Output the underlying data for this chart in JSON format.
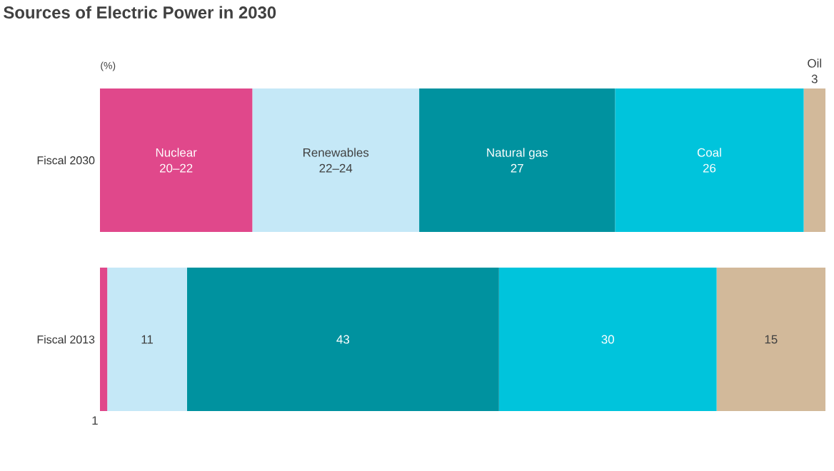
{
  "chart_data": {
    "type": "bar",
    "orientation": "horizontal",
    "stacked": true,
    "title": "Sources of Electric Power in 2030",
    "annotations": [
      "(%)"
    ],
    "categories": [
      "Fiscal 2030",
      "Fiscal 2013"
    ],
    "xlim": [
      0,
      100
    ],
    "tick_labels": "y",
    "series": [
      {
        "name": "Nuclear",
        "color": "#e0488b",
        "values": [
          21,
          1
        ],
        "value_labels": [
          "20–22",
          "1"
        ]
      },
      {
        "name": "Renewables",
        "color": "#c5e8f7",
        "values": [
          23,
          11
        ],
        "value_labels": [
          "22–24",
          "11"
        ]
      },
      {
        "name": "Natural gas",
        "color": "#00929f",
        "values": [
          27,
          43
        ],
        "value_labels": [
          "27",
          "43"
        ]
      },
      {
        "name": "Coal",
        "color": "#00c4dc",
        "values": [
          26,
          30
        ],
        "value_labels": [
          "26",
          "30"
        ]
      },
      {
        "name": "Oil",
        "color": "#d2b99a",
        "values": [
          3,
          15
        ],
        "value_labels": [
          "3",
          "15"
        ]
      }
    ]
  }
}
